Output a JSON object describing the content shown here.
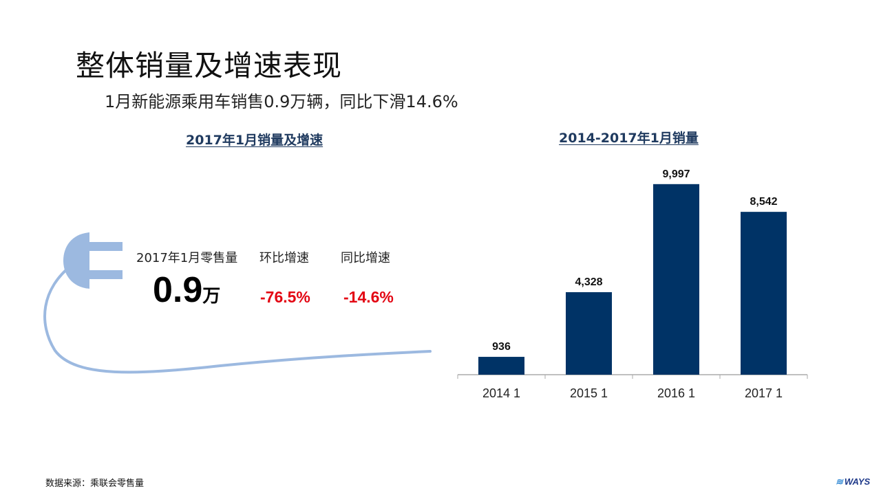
{
  "page": {
    "title": "整体销量及增速表现",
    "subtitle": "1月新能源乘用车销售0.9万辆，同比下滑14.6%"
  },
  "left_panel": {
    "section_title": "2017年1月销量及增速",
    "retail_label": "2017年1月零售量",
    "retail_value": "0.9",
    "retail_unit": "万",
    "mom_label": "环比增速",
    "mom_value": "-76.5%",
    "yoy_label": "同比增速",
    "yoy_value": "-14.6%"
  },
  "right_panel": {
    "section_title": "2014-2017年1月销量"
  },
  "footer": {
    "source": "数据来源：乘联会零售量",
    "logo": "WAYS"
  },
  "colors": {
    "bar": "#003366",
    "negative": "#e30613",
    "plug": "#9cb9e0",
    "section_title": "#1f3a5f"
  },
  "chart_data": {
    "type": "bar",
    "categories": [
      "2014 1",
      "2015 1",
      "2016 1",
      "2017 1"
    ],
    "values": [
      936,
      4328,
      9997,
      8542
    ],
    "value_labels": [
      "936",
      "4,328",
      "9,997",
      "8,542"
    ],
    "title": "2014-2017年1月销量",
    "ylim": [
      0,
      11000
    ],
    "grid": false,
    "legend": "none"
  }
}
